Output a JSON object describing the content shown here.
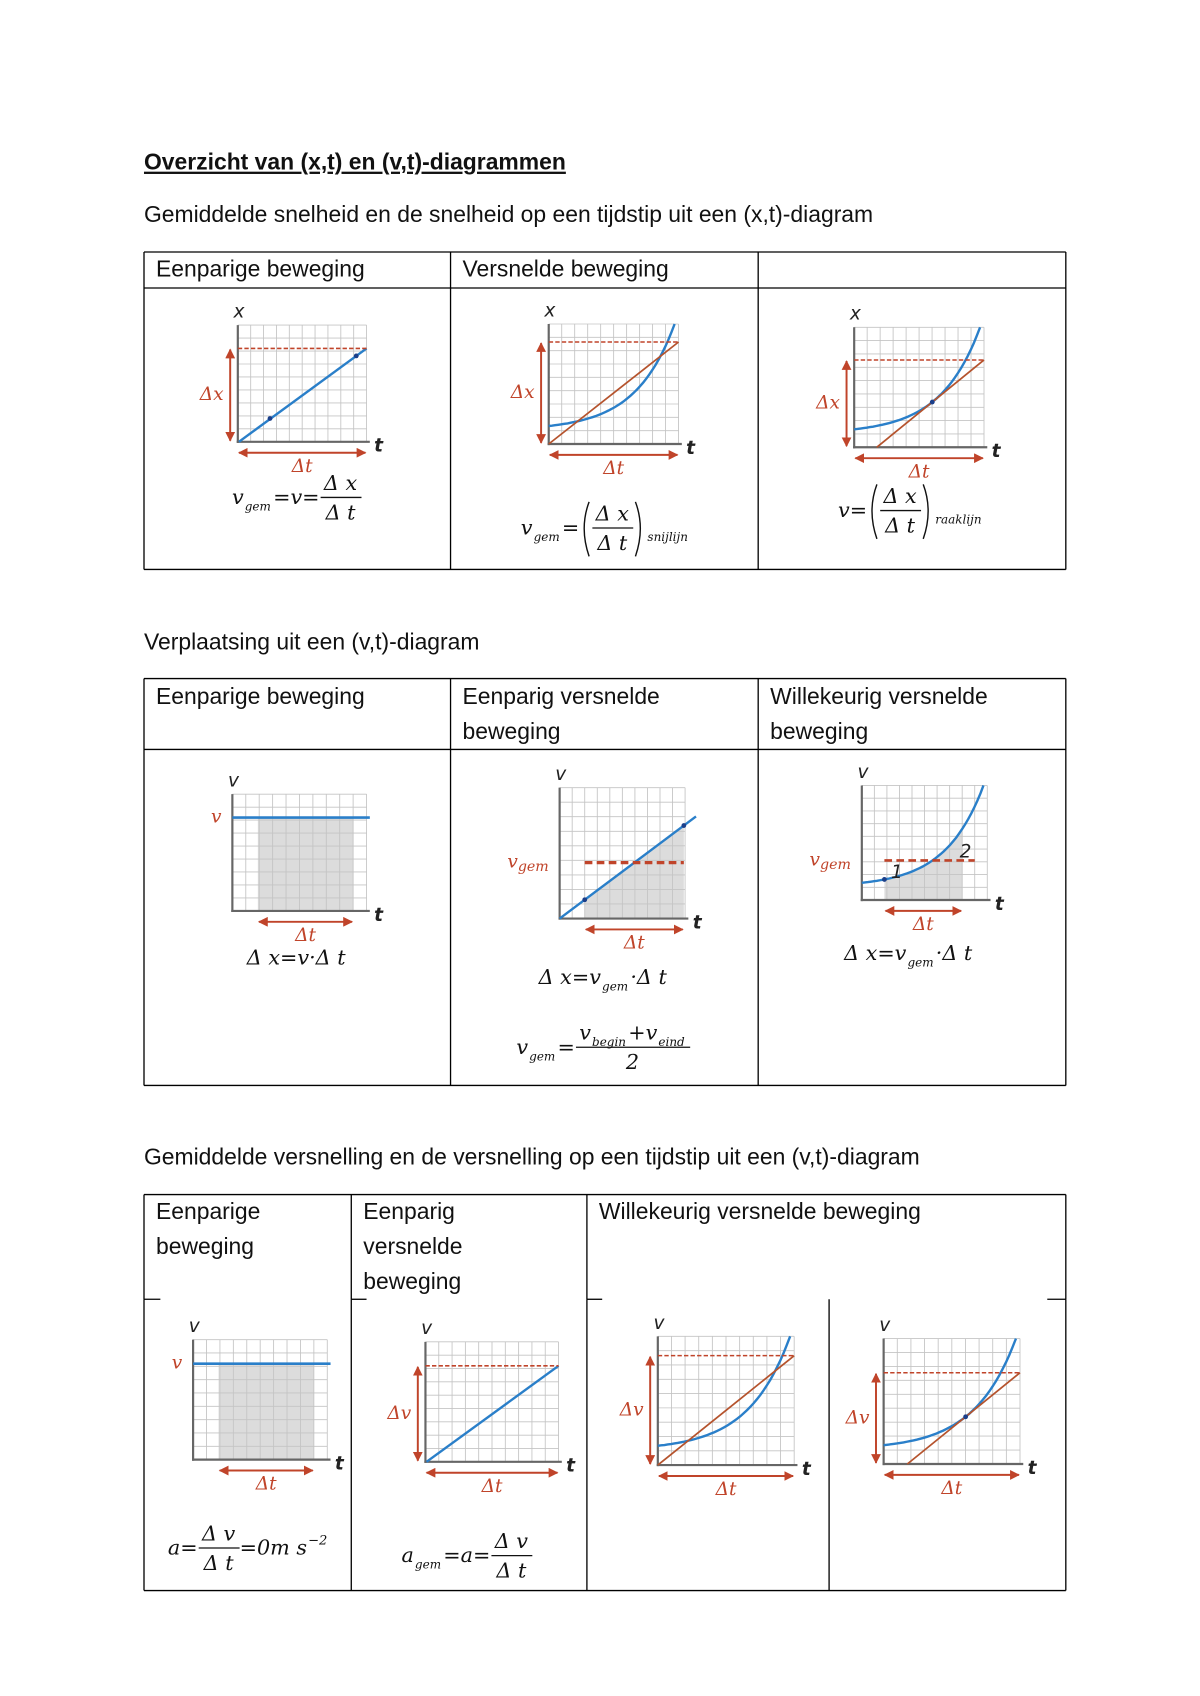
{
  "title": "Overzicht van (x,t) en (v,t)-diagrammen",
  "sections": [
    {
      "heading": "Gemiddelde snelheid en de snelheid op een tijdstip uit een (x,t)-diagram",
      "headers": [
        [
          "Eenparige beweging"
        ],
        [
          "Versnelde beweging"
        ]
      ],
      "cells": [
        {
          "diagram": {
            "y_axis": "x",
            "x_axis": "t",
            "delta_y": "Δx",
            "delta_x": "Δt"
          },
          "formulas": [
            [
              {
                "text": "v"
              },
              {
                "sub": "gem"
              },
              {
                "text": "=v="
              },
              {
                "num": [
                  {
                    "text": "Δ x"
                  }
                ],
                "den": [
                  {
                    "text": "Δ t"
                  }
                ]
              }
            ]
          ]
        },
        {
          "diagram": {
            "y_axis": "x",
            "x_axis": "t",
            "delta_y": "Δx",
            "delta_x": "Δt"
          },
          "formulas": [
            [
              {
                "text": "v"
              },
              {
                "sub": "gem"
              },
              {
                "text": "="
              },
              {
                "num": [
                  {
                    "text": "Δ x"
                  }
                ],
                "den": [
                  {
                    "text": "Δ t"
                  }
                ],
                "brackets": true
              },
              {
                "sub": "snijlijn"
              }
            ]
          ]
        },
        {
          "diagram": {
            "y_axis": "x",
            "x_axis": "t",
            "delta_y": "Δx",
            "delta_x": "Δt"
          },
          "formulas": [
            [
              {
                "text": "v="
              },
              {
                "num": [
                  {
                    "text": "Δ x"
                  }
                ],
                "den": [
                  {
                    "text": "Δ t"
                  }
                ],
                "brackets": true
              },
              {
                "sub": "raaklijn"
              }
            ]
          ]
        }
      ]
    },
    {
      "heading": "Verplaatsing uit een (v,t)-diagram",
      "headers": [
        [
          "Eenparige beweging"
        ],
        [
          "Eenparig versnelde",
          "beweging"
        ],
        [
          "Willekeurig versnelde",
          "beweging"
        ]
      ],
      "cells": [
        {
          "diagram": {
            "y_axis": "v",
            "x_axis": "t",
            "level": "v",
            "delta_x": "Δt"
          },
          "formulas": [
            [
              {
                "text": "Δ x=v·Δ t"
              }
            ]
          ]
        },
        {
          "diagram": {
            "y_axis": "v",
            "x_axis": "t",
            "level": "v",
            "level_sub": "gem",
            "delta_x": "Δt"
          },
          "formulas": [
            [
              {
                "text": "Δ x=v"
              },
              {
                "sub": "gem"
              },
              {
                "text": "·Δ t"
              }
            ],
            [
              {
                "text": "v"
              },
              {
                "sub": "gem"
              },
              {
                "text": "="
              },
              {
                "num": [
                  {
                    "text": "v"
                  },
                  {
                    "sub": "begin"
                  },
                  {
                    "text": "+v"
                  },
                  {
                    "sub": "eind"
                  }
                ],
                "den": [
                  {
                    "text": "2"
                  }
                ]
              }
            ]
          ]
        },
        {
          "diagram": {
            "y_axis": "v",
            "x_axis": "t",
            "level": "v",
            "level_sub": "gem",
            "delta_x": "Δt",
            "areas": [
              "1",
              "2"
            ]
          },
          "formulas": [
            [
              {
                "text": "Δ x=v"
              },
              {
                "sub": "gem"
              },
              {
                "text": "·Δ t"
              }
            ]
          ]
        }
      ]
    },
    {
      "heading": "Gemiddelde versnelling en de versnelling op een tijdstip uit een (v,t)-diagram",
      "headers": [
        [
          "Eenparige",
          "beweging"
        ],
        [
          "Eenparig",
          "versnelde",
          "beweging"
        ],
        [
          "Willekeurig versnelde beweging"
        ]
      ],
      "cells": [
        {
          "diagram": {
            "y_axis": "v",
            "x_axis": "t",
            "level": "v",
            "delta_x": "Δt"
          },
          "formulas": [
            [
              {
                "text": "a="
              },
              {
                "num": [
                  {
                    "text": "Δ v"
                  }
                ],
                "den": [
                  {
                    "text": "Δ t"
                  }
                ]
              },
              {
                "text": "=0m s"
              },
              {
                "sup": "−2"
              }
            ]
          ]
        },
        {
          "diagram": {
            "y_axis": "v",
            "x_axis": "t",
            "delta_y": "Δv",
            "delta_x": "Δt"
          },
          "formulas": [
            [
              {
                "text": "a"
              },
              {
                "sub": "gem"
              },
              {
                "text": "=a="
              },
              {
                "num": [
                  {
                    "text": "Δ v"
                  }
                ],
                "den": [
                  {
                    "text": "Δ t"
                  }
                ]
              }
            ]
          ]
        },
        {
          "diagram": {
            "y_axis": "v",
            "x_axis": "t",
            "delta_y": "Δv",
            "delta_x": "Δt"
          }
        },
        {
          "diagram": {
            "y_axis": "v",
            "x_axis": "t",
            "delta_y": "Δv",
            "delta_x": "Δt"
          }
        }
      ]
    }
  ]
}
